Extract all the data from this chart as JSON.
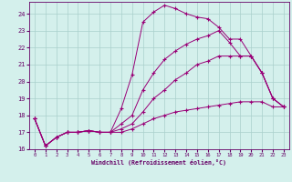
{
  "xlabel": "Windchill (Refroidissement éolien,°C)",
  "bg_color": "#d4f0ec",
  "grid_color": "#aacfcc",
  "line_color": "#990077",
  "spine_color": "#660066",
  "xlim": [
    -0.5,
    23.5
  ],
  "ylim": [
    16,
    24.7
  ],
  "yticks": [
    16,
    17,
    18,
    19,
    20,
    21,
    22,
    23,
    24
  ],
  "xticks": [
    0,
    1,
    2,
    3,
    4,
    5,
    6,
    7,
    8,
    9,
    10,
    11,
    12,
    13,
    14,
    15,
    16,
    17,
    18,
    19,
    20,
    21,
    22,
    23
  ],
  "lines": [
    {
      "x": [
        0,
        1,
        2,
        3,
        4,
        5,
        6,
        7,
        8,
        9,
        10,
        11,
        12,
        13,
        14,
        15,
        16,
        17,
        18,
        19,
        20,
        21,
        22,
        23
      ],
      "y": [
        17.8,
        16.2,
        16.7,
        17.0,
        17.0,
        17.1,
        17.0,
        17.0,
        18.4,
        20.4,
        23.5,
        24.1,
        24.5,
        24.3,
        24.0,
        23.8,
        23.7,
        23.2,
        22.5,
        22.5,
        21.5,
        20.5,
        19.0,
        18.5
      ]
    },
    {
      "x": [
        0,
        1,
        2,
        3,
        4,
        5,
        6,
        7,
        8,
        9,
        10,
        11,
        12,
        13,
        14,
        15,
        16,
        17,
        18,
        19,
        20,
        21,
        22,
        23
      ],
      "y": [
        17.8,
        16.2,
        16.7,
        17.0,
        17.0,
        17.1,
        17.0,
        17.0,
        17.5,
        18.0,
        19.5,
        20.5,
        21.3,
        21.8,
        22.2,
        22.5,
        22.7,
        23.0,
        22.3,
        21.5,
        21.5,
        20.5,
        19.0,
        18.5
      ]
    },
    {
      "x": [
        0,
        1,
        2,
        3,
        4,
        5,
        6,
        7,
        8,
        9,
        10,
        11,
        12,
        13,
        14,
        15,
        16,
        17,
        18,
        19,
        20,
        21,
        22,
        23
      ],
      "y": [
        17.8,
        16.2,
        16.7,
        17.0,
        17.0,
        17.1,
        17.0,
        17.0,
        17.2,
        17.5,
        18.2,
        19.0,
        19.5,
        20.1,
        20.5,
        21.0,
        21.2,
        21.5,
        21.5,
        21.5,
        21.5,
        20.5,
        19.0,
        18.5
      ]
    },
    {
      "x": [
        0,
        1,
        2,
        3,
        4,
        5,
        6,
        7,
        8,
        9,
        10,
        11,
        12,
        13,
        14,
        15,
        16,
        17,
        18,
        19,
        20,
        21,
        22,
        23
      ],
      "y": [
        17.8,
        16.2,
        16.7,
        17.0,
        17.0,
        17.1,
        17.0,
        17.0,
        17.0,
        17.2,
        17.5,
        17.8,
        18.0,
        18.2,
        18.3,
        18.4,
        18.5,
        18.6,
        18.7,
        18.8,
        18.8,
        18.8,
        18.5,
        18.5
      ]
    }
  ]
}
